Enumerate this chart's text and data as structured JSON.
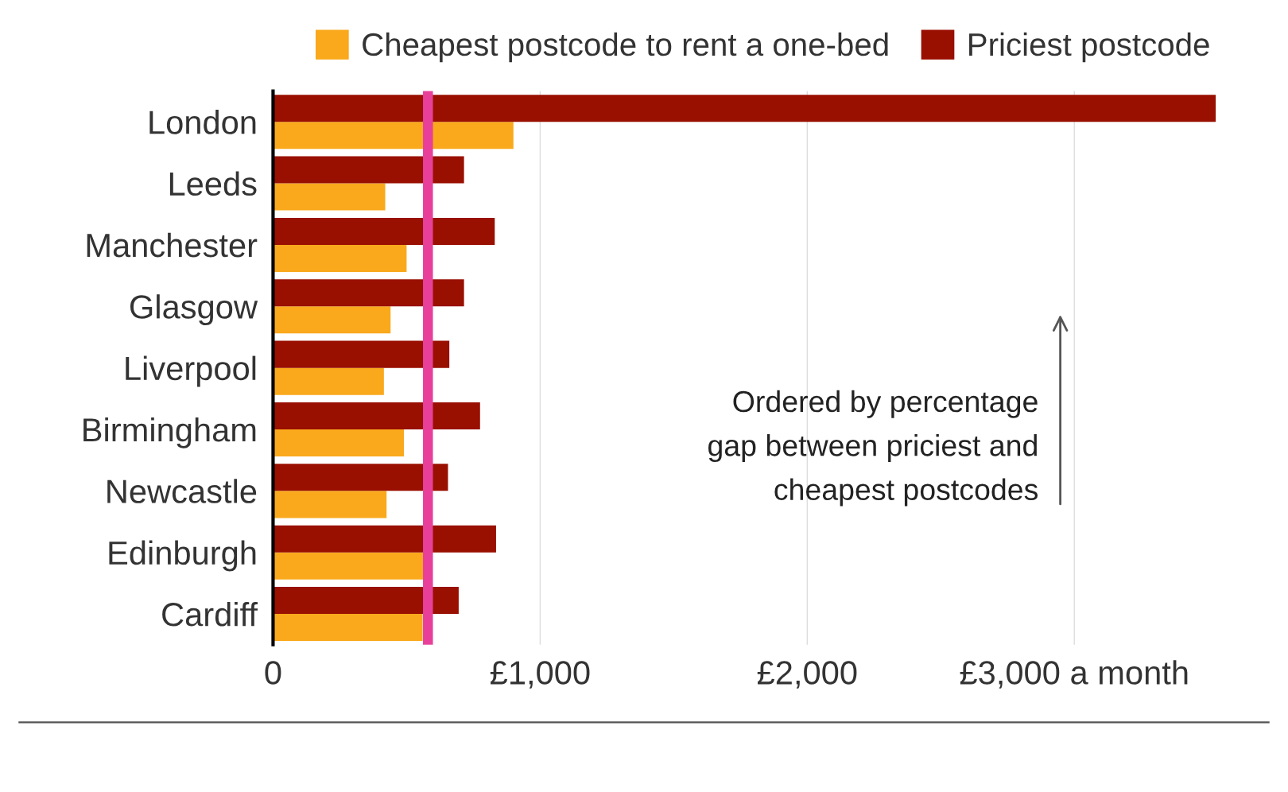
{
  "chart_data": {
    "type": "bar",
    "orientation": "horizontal",
    "categories": [
      "London",
      "Leeds",
      "Manchester",
      "Glasgow",
      "Liverpool",
      "Birmingham",
      "Newcastle",
      "Edinburgh",
      "Cardiff"
    ],
    "series": [
      {
        "name": "Cheapest postcode to rent a one-bed",
        "color": "#f9a91b",
        "values": [
          900,
          420,
          500,
          440,
          415,
          490,
          425,
          565,
          560
        ]
      },
      {
        "name": "Priciest postcode",
        "color": "#990f00",
        "values": [
          3530,
          715,
          830,
          715,
          660,
          775,
          655,
          835,
          695
        ]
      }
    ],
    "xticks": [
      0,
      {
        "value": 1000,
        "label": "£1,000"
      },
      {
        "value": 2000,
        "label": "£2,000"
      },
      {
        "value": 3000,
        "label": "£3,000 a month"
      }
    ],
    "xlim": [
      0,
      3530
    ],
    "grid": "x",
    "legend": "top",
    "ref_lines": [
      {
        "axis": "x",
        "value": 580,
        "color": "#e8409a"
      }
    ],
    "annotations": [
      "Ordered by percentage\ngap between priciest and\ncheapest postcodes"
    ]
  }
}
